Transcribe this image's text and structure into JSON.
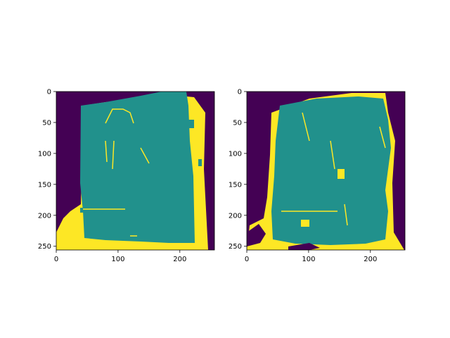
{
  "figure": {
    "background": "#ffffff"
  },
  "colormap": {
    "name": "viridis",
    "class_colors": [
      "#440154",
      "#21918c",
      "#fde725"
    ]
  },
  "chart_data": [
    {
      "type": "heatmap",
      "title": "",
      "xlabel": "",
      "ylabel": "",
      "xlim": [
        0,
        256
      ],
      "ylim": [
        256,
        0
      ],
      "xticks": [
        0,
        100,
        200
      ],
      "yticks": [
        0,
        50,
        100,
        150,
        200,
        250
      ],
      "grid": false,
      "legend": "none",
      "classes": [
        "0",
        "1",
        "2"
      ]
    },
    {
      "type": "heatmap",
      "title": "",
      "xlabel": "",
      "ylabel": "",
      "xlim": [
        0,
        256
      ],
      "ylim": [
        256,
        0
      ],
      "xticks": [
        0,
        100,
        200
      ],
      "yticks": [
        0,
        50,
        100,
        150,
        200,
        250
      ],
      "grid": false,
      "legend": "none",
      "classes": [
        "0",
        "1",
        "2"
      ]
    }
  ]
}
